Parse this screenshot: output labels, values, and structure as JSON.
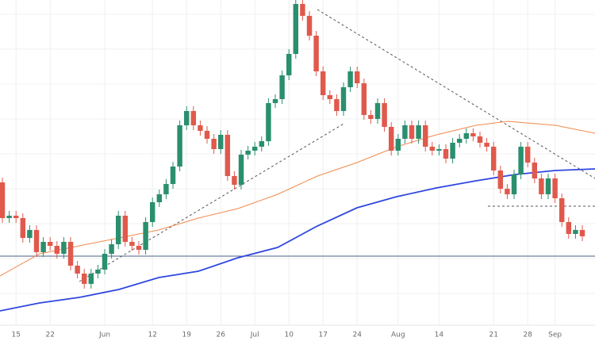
{
  "chart_data": {
    "type": "candlestick",
    "xlim": [
      -0.35,
      86.86
    ],
    "ylim": [
      0,
      410
    ],
    "xticks": [
      {
        "value": 2,
        "label": "15"
      },
      {
        "value": 7,
        "label": "22"
      },
      {
        "value": 15,
        "label": "Jun"
      },
      {
        "value": 22,
        "label": "12"
      },
      {
        "value": 27,
        "label": "19"
      },
      {
        "value": 32,
        "label": "26"
      },
      {
        "value": 37,
        "label": "Jul"
      },
      {
        "value": 42,
        "label": "10"
      },
      {
        "value": 47,
        "label": "17"
      },
      {
        "value": 52,
        "label": "24"
      },
      {
        "value": 58,
        "label": "Aug"
      },
      {
        "value": 64,
        "label": "14"
      },
      {
        "value": 72,
        "label": "21"
      },
      {
        "value": 77,
        "label": "28"
      },
      {
        "value": 81,
        "label": "Sep"
      }
    ],
    "ygrid": [
      392,
      348,
      304,
      260,
      216,
      172,
      128,
      84,
      40
    ],
    "grid": true,
    "up_color": "#2a8f6e",
    "down_color": "#e0594c",
    "open": [
      180,
      135,
      138,
      135,
      110,
      120,
      92,
      105,
      100,
      90,
      105,
      75,
      65,
      52,
      65,
      70,
      90,
      102,
      138,
      105,
      100,
      95,
      130,
      155,
      165,
      178,
      200,
      252,
      270,
      252,
      245,
      235,
      222,
      240,
      188,
      177,
      215,
      220,
      225,
      232,
      280,
      285,
      315,
      342,
      405,
      390,
      365,
      320,
      290,
      285,
      270,
      300,
      320,
      305,
      265,
      260,
      280,
      250,
      220,
      235,
      252,
      235,
      252,
      225,
      220,
      222,
      210,
      230,
      235,
      242,
      238,
      230,
      225,
      195,
      172,
      165,
      190,
      225,
      205,
      185,
      165,
      185,
      160,
      130,
      115,
      120
    ],
    "high": [
      186,
      144,
      144,
      141,
      126,
      126,
      111,
      111,
      106,
      111,
      111,
      81,
      71,
      71,
      76,
      96,
      108,
      144,
      144,
      111,
      106,
      136,
      161,
      171,
      184,
      206,
      258,
      276,
      276,
      258,
      251,
      241,
      246,
      246,
      194,
      221,
      226,
      231,
      238,
      286,
      291,
      321,
      348,
      410,
      410,
      396,
      371,
      326,
      296,
      291,
      306,
      326,
      326,
      311,
      271,
      286,
      286,
      256,
      241,
      258,
      258,
      258,
      258,
      231,
      228,
      228,
      236,
      241,
      248,
      248,
      244,
      236,
      231,
      201,
      178,
      196,
      231,
      231,
      211,
      191,
      191,
      191,
      166,
      136,
      126,
      126
    ],
    "low": [
      129,
      129,
      129,
      104,
      104,
      86,
      86,
      94,
      84,
      84,
      69,
      59,
      46,
      46,
      59,
      64,
      84,
      96,
      99,
      94,
      89,
      89,
      124,
      149,
      159,
      172,
      194,
      246,
      246,
      239,
      229,
      216,
      216,
      182,
      171,
      171,
      209,
      214,
      219,
      226,
      274,
      279,
      309,
      336,
      384,
      359,
      314,
      284,
      279,
      264,
      264,
      294,
      299,
      259,
      254,
      254,
      244,
      214,
      214,
      229,
      229,
      229,
      219,
      214,
      214,
      204,
      204,
      224,
      229,
      232,
      224,
      219,
      189,
      166,
      159,
      159,
      184,
      199,
      179,
      159,
      159,
      154,
      124,
      109,
      109,
      106
    ],
    "close": [
      135,
      138,
      135,
      110,
      120,
      92,
      105,
      100,
      90,
      105,
      75,
      65,
      52,
      65,
      70,
      90,
      102,
      138,
      105,
      100,
      95,
      130,
      155,
      165,
      178,
      200,
      252,
      270,
      252,
      245,
      235,
      222,
      240,
      188,
      177,
      215,
      220,
      225,
      232,
      280,
      285,
      315,
      342,
      405,
      390,
      365,
      320,
      290,
      285,
      270,
      300,
      320,
      305,
      265,
      260,
      280,
      250,
      220,
      235,
      252,
      235,
      252,
      225,
      220,
      222,
      210,
      230,
      235,
      242,
      238,
      230,
      225,
      195,
      172,
      165,
      190,
      225,
      205,
      185,
      165,
      185,
      160,
      130,
      115,
      120,
      112
    ],
    "series": [
      {
        "color": "#f08a4b",
        "x": [
          -0.35,
          5.47,
          11.28,
          17.09,
          22.91,
          28.72,
          34.53,
          40.35,
          46.16,
          51.98,
          57.79,
          63.6,
          69.42,
          74.07,
          81.05,
          86.86
        ],
        "values": [
          62,
          90,
          100,
          110,
          120,
          135,
          147,
          165,
          188,
          205,
          225,
          240,
          252,
          257,
          252,
          242
        ]
      },
      {
        "color": "#2f47e0",
        "x": [
          -0.35,
          5.47,
          11.28,
          17.09,
          22.91,
          28.72,
          34.53,
          40.35,
          46.16,
          51.98,
          57.79,
          63.6,
          69.42,
          75.21,
          81.05,
          86.86
        ],
        "values": [
          18,
          28,
          35,
          45,
          60,
          68,
          85,
          98,
          125,
          148,
          162,
          173,
          182,
          190,
          195,
          197
        ]
      }
    ],
    "trendlines": [
      {
        "x": [
          11.28,
          50.23
        ],
        "values": [
          55,
          255
        ]
      },
      {
        "x": [
          46.16,
          86.86
        ],
        "values": [
          398,
          185
        ]
      },
      {
        "x": [
          71.16,
          86.86
        ],
        "values": [
          150,
          150
        ]
      }
    ],
    "level": {
      "value": 87,
      "color": "#4a5f86"
    }
  }
}
